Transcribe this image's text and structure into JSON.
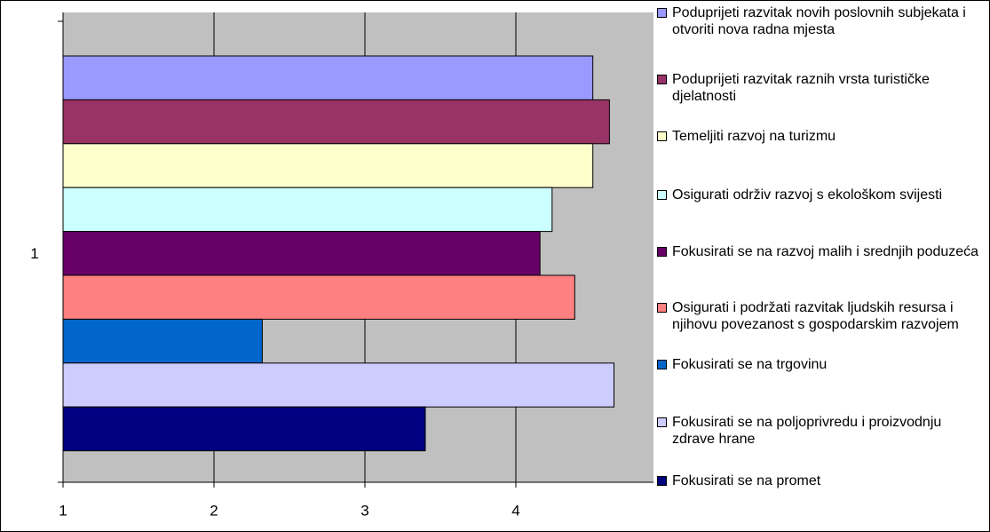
{
  "chart_data": {
    "type": "bar",
    "orientation": "horizontal",
    "categories": [
      "1"
    ],
    "series": [
      {
        "name": "Poduprijeti razvitak novih poslovnih subjekata i otvoriti nova radna mjesta",
        "color": "#9999ff",
        "values": [
          4.51
        ]
      },
      {
        "name": "Poduprijeti razvitak raznih vrsta turističke djelatnosti",
        "color": "#993366",
        "values": [
          4.62
        ]
      },
      {
        "name": "Temeljiti razvoj na turizmu",
        "color": "#ffffcc",
        "values": [
          4.51
        ]
      },
      {
        "name": "Osigurati održiv razvoj s ekološkom svijesti",
        "color": "#ccffff",
        "values": [
          4.24
        ]
      },
      {
        "name": "Fokusirati se na razvoj malih i srednjih poduzeća",
        "color": "#660066",
        "values": [
          4.16
        ]
      },
      {
        "name": "Osigurati i podržati razvitak ljudskih resursa i njihovu povezanost s gospodarskim razvojem",
        "color": "#ff8080",
        "values": [
          4.39
        ]
      },
      {
        "name": "Fokusirati se na trgovinu",
        "color": "#0066cc",
        "values": [
          2.32
        ]
      },
      {
        "name": "Fokusirati se na poljoprivredu i proizvodnju zdrave hrane",
        "color": "#ccccff",
        "values": [
          4.65
        ]
      },
      {
        "name": "Fokusirati se na promet",
        "color": "#000080",
        "values": [
          3.4
        ]
      }
    ],
    "xlim": [
      1,
      5
    ],
    "xticks": [
      1,
      2,
      3,
      4
    ],
    "grid": true,
    "legend": "right"
  }
}
